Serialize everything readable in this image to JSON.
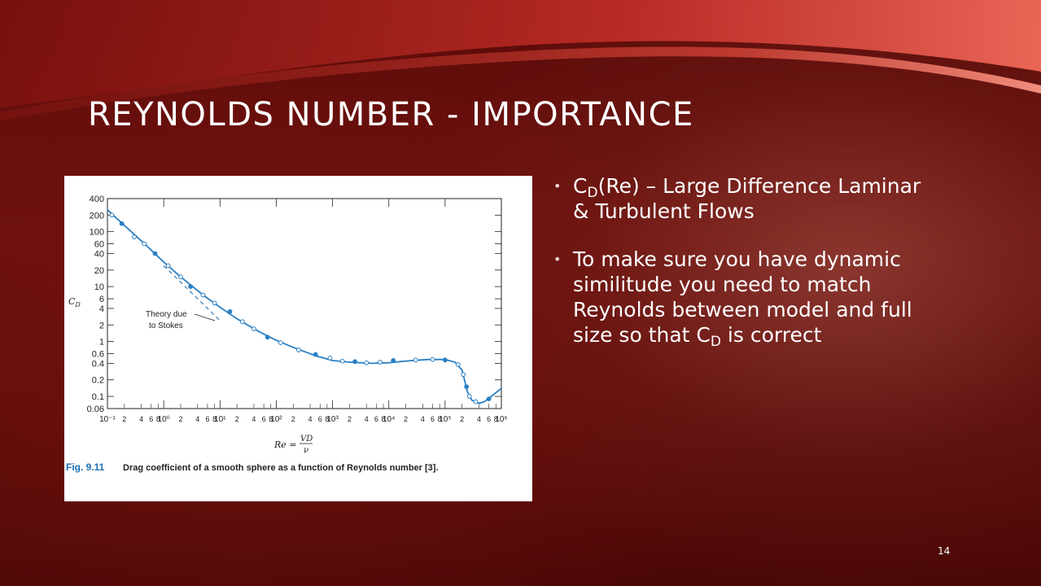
{
  "slide": {
    "title": "Reynolds Number - Importance",
    "page_number": "14"
  },
  "bullets": [
    {
      "pre": "C",
      "sub": "D",
      "post": "(Re) – Large Difference Laminar & Turbulent Flows"
    },
    {
      "pre": "To make sure you have dynamic similitude you need to match Reynolds between model and full size so that C",
      "sub": "D",
      "post": " is correct"
    }
  ],
  "figure": {
    "caption_label": "Fig. 9.11",
    "caption_text": "Drag coefficient of a smooth sphere as a function of Reynolds number [3].",
    "annotation": [
      "Theory due",
      "to Stokes"
    ],
    "colors": {
      "curve": "#2a7fc2",
      "caption": "#1f6fb5",
      "axes": "#222222"
    }
  },
  "chart_data": {
    "type": "line",
    "title": "",
    "xlabel": "Re = VD/ν",
    "ylabel": "C_D",
    "x_scale": "log",
    "y_scale": "log",
    "xlim": [
      0.1,
      1000000
    ],
    "ylim": [
      0.06,
      400
    ],
    "x_ticks": [
      {
        "label": "10⁻¹",
        "v": 0.1
      },
      {
        "label": "10⁰",
        "v": 1
      },
      {
        "label": "10¹",
        "v": 10
      },
      {
        "label": "10²",
        "v": 100
      },
      {
        "label": "10³",
        "v": 1000
      },
      {
        "label": "10⁴",
        "v": 10000
      },
      {
        "label": "10⁵",
        "v": 100000
      },
      {
        "label": "10⁶",
        "v": 1000000
      }
    ],
    "x_minor_labels": [
      "2",
      "4",
      "6",
      "8"
    ],
    "y_ticks": [
      {
        "label": "400",
        "v": 400
      },
      {
        "label": "200",
        "v": 200
      },
      {
        "label": "100",
        "v": 100
      },
      {
        "label": "60",
        "v": 60
      },
      {
        "label": "40",
        "v": 40
      },
      {
        "label": "20",
        "v": 20
      },
      {
        "label": "10",
        "v": 10
      },
      {
        "label": "6",
        "v": 6
      },
      {
        "label": "4",
        "v": 4
      },
      {
        "label": "2",
        "v": 2
      },
      {
        "label": "1",
        "v": 1
      },
      {
        "label": "0.6",
        "v": 0.6
      },
      {
        "label": "0.4",
        "v": 0.4
      },
      {
        "label": "0.2",
        "v": 0.2
      },
      {
        "label": "0.1",
        "v": 0.1
      },
      {
        "label": "0.06",
        "v": 0.06
      }
    ],
    "series": [
      {
        "name": "",
        "style": "solid",
        "x": [
          0.1,
          0.2,
          0.5,
          1,
          2,
          5,
          10,
          20,
          50,
          100,
          200,
          500,
          1000,
          2000,
          5000,
          10000,
          20000,
          50000,
          100000,
          150000,
          200000,
          250000,
          300000,
          400000,
          500000,
          1000000
        ],
        "y": [
          250,
          130,
          55,
          28,
          15,
          7,
          4.2,
          2.6,
          1.5,
          1.05,
          0.78,
          0.55,
          0.45,
          0.42,
          0.4,
          0.41,
          0.44,
          0.47,
          0.47,
          0.42,
          0.3,
          0.12,
          0.085,
          0.075,
          0.08,
          0.14
        ]
      },
      {
        "name": "",
        "style": "dashed",
        "x": [
          1,
          2,
          5,
          10
        ],
        "y": [
          24,
          12,
          4.8,
          2.4
        ]
      }
    ],
    "markers": {
      "x": [
        0.12,
        0.18,
        0.3,
        0.45,
        0.7,
        1.2,
        2,
        3,
        5,
        8,
        15,
        25,
        40,
        70,
        120,
        250,
        500,
        900,
        1500,
        2500,
        4000,
        7000,
        12000,
        30000,
        60000,
        100000,
        170000,
        210000,
        240000,
        270000,
        350000,
        600000
      ],
      "y": [
        200,
        140,
        80,
        60,
        40,
        24,
        15,
        10,
        7,
        5,
        3.5,
        2.3,
        1.7,
        1.2,
        0.95,
        0.7,
        0.58,
        0.5,
        0.44,
        0.43,
        0.41,
        0.42,
        0.45,
        0.46,
        0.47,
        0.46,
        0.38,
        0.25,
        0.15,
        0.1,
        0.08,
        0.09
      ]
    }
  }
}
